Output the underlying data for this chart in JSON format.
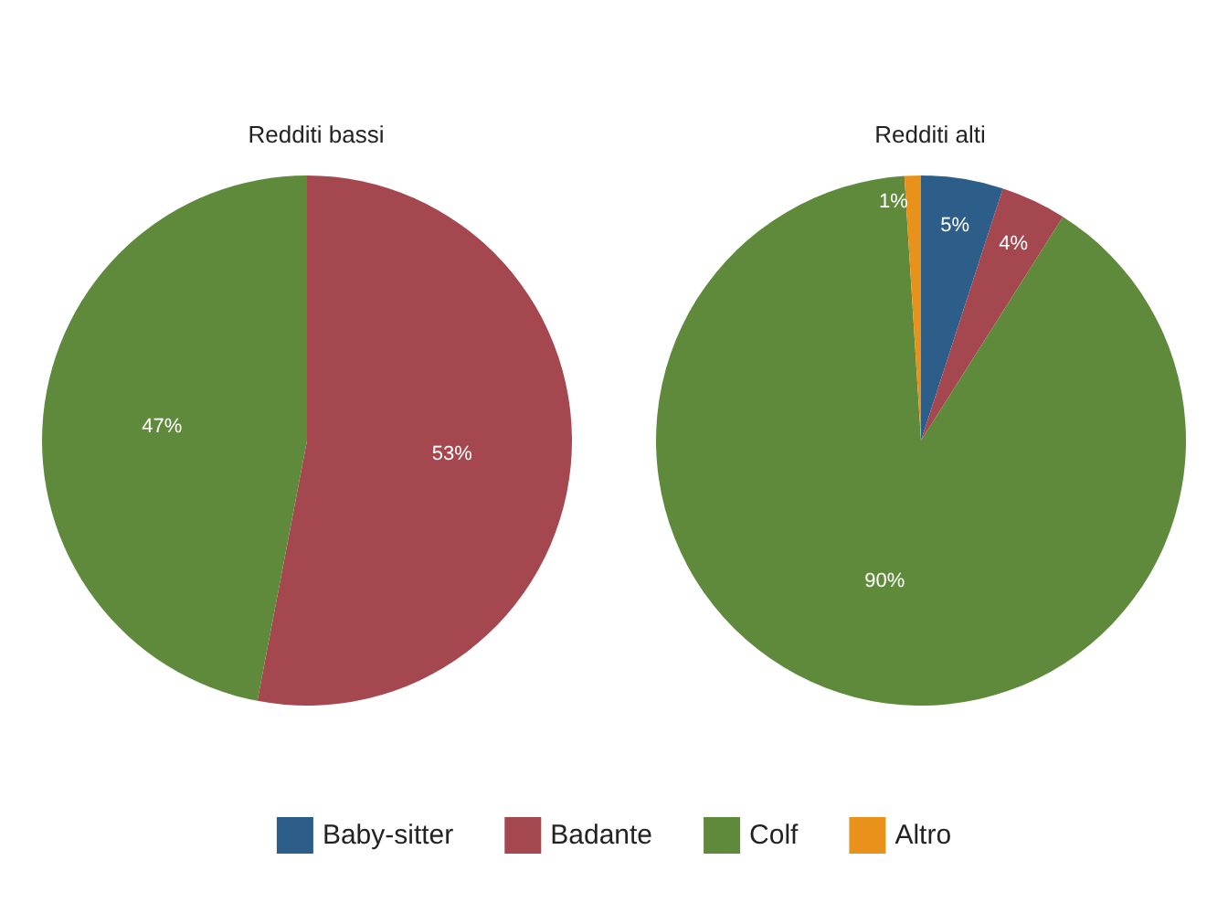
{
  "chart_data": {
    "type": "pie",
    "categories": [
      "Baby-sitter",
      "Badante",
      "Colf",
      "Altro"
    ],
    "colors": [
      "#2c5e89",
      "#a4474f",
      "#5f8a3b",
      "#e8921c"
    ],
    "legend": "bottom",
    "series": [
      {
        "name": "Redditi bassi",
        "values": [
          0,
          53,
          47,
          0
        ],
        "value_labels": [
          null,
          "53%",
          "47%",
          null
        ]
      },
      {
        "name": "Redditi alti",
        "values": [
          5,
          4,
          90,
          1
        ],
        "value_labels": [
          "5%",
          "4%",
          "90%",
          "1%"
        ]
      }
    ]
  }
}
